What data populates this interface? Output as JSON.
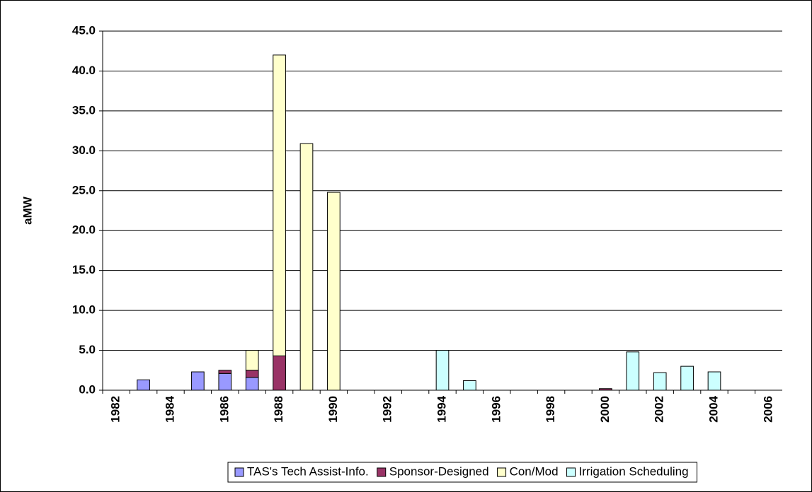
{
  "chart_data": {
    "type": "bar",
    "stacked": true,
    "y_label": "aMW",
    "categories": [
      "1982",
      null,
      "1984",
      null,
      "1986",
      null,
      "1988",
      null,
      "1990",
      null,
      "1992",
      null,
      "1994",
      null,
      "1996",
      null,
      "1998",
      null,
      "2000",
      null,
      "2002",
      null,
      "2004",
      null,
      "2006"
    ],
    "series": [
      {
        "name": "TAS's Tech Assist-Info.",
        "color": "#9999ff",
        "values": [
          0,
          1.3,
          0,
          2.3,
          2.1,
          1.6,
          0,
          0,
          0,
          0,
          0,
          0,
          0,
          0,
          0,
          0,
          0,
          0,
          0,
          0,
          0,
          0,
          0,
          0,
          0
        ]
      },
      {
        "name": "Sponsor-Designed",
        "color": "#993366",
        "values": [
          0,
          0,
          0,
          0,
          0.4,
          0.9,
          4.3,
          0,
          0,
          0,
          0,
          0,
          0,
          0,
          0,
          0,
          0,
          0,
          0.2,
          0,
          0,
          0,
          0,
          0,
          0
        ]
      },
      {
        "name": "Con/Mod",
        "color": "#ffffcc",
        "values": [
          0,
          0,
          0,
          0,
          0,
          2.5,
          37.7,
          30.9,
          24.8,
          0,
          0,
          0,
          0,
          0,
          0,
          0,
          0,
          0,
          0,
          0,
          0,
          0,
          0,
          0,
          0
        ]
      },
      {
        "name": "Irrigation Scheduling",
        "color": "#ccffff",
        "values": [
          0,
          0,
          0,
          0,
          0,
          0,
          0,
          0,
          0,
          0,
          0,
          0,
          5.0,
          1.2,
          0,
          0,
          0,
          0,
          0,
          4.8,
          2.2,
          3.0,
          2.3,
          0,
          0
        ]
      }
    ],
    "ylim": [
      0,
      45
    ],
    "yticks": [
      {
        "value": 0,
        "label": "0.0"
      },
      {
        "value": 5,
        "label": "5.0"
      },
      {
        "value": 10,
        "label": "10.0"
      },
      {
        "value": 15,
        "label": "15.0"
      },
      {
        "value": 20,
        "label": "20.0"
      },
      {
        "value": 25,
        "label": "25.0"
      },
      {
        "value": 30,
        "label": "30.0"
      },
      {
        "value": 35,
        "label": "35.0"
      },
      {
        "value": 40,
        "label": "40.0"
      },
      {
        "value": 45,
        "label": "45.0"
      }
    ],
    "grid": true,
    "legend": "bottom"
  }
}
